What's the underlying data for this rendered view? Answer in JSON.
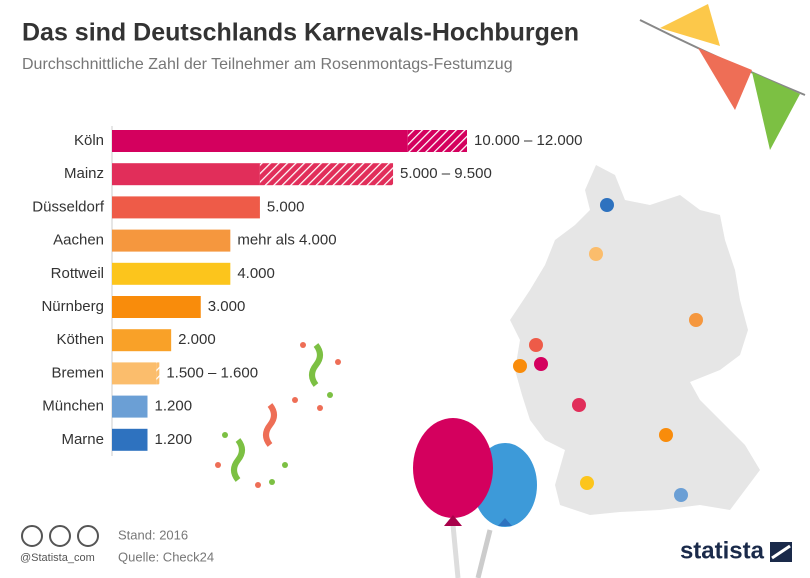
{
  "chart_data": {
    "type": "range_bar",
    "title": "Das sind Deutschlands Karnevals-Hochburgen",
    "subtitle": "Durchschnittliche Zahl der Teilnehmer am Rosenmontags-Festumzug",
    "categories": [
      "Köln",
      "Mainz",
      "Düsseldorf",
      "Aachen",
      "Rottweil",
      "Nürnberg",
      "Köthen",
      "Bremen",
      "München",
      "Marne"
    ],
    "values": [
      10000,
      5000,
      5000,
      4000,
      4000,
      3000,
      2000,
      1500,
      1200,
      1200
    ],
    "range_max": [
      12000,
      9500,
      null,
      null,
      null,
      null,
      null,
      1600,
      null,
      null
    ],
    "value_labels": [
      "10.000 – 12.000",
      "5.000 – 9.500",
      "5.000",
      "mehr als 4.000",
      "4.000",
      "3.000",
      "2.000",
      "1.500 – 1.600",
      "1.200",
      "1.200"
    ],
    "colors": [
      "#d4005e",
      "#e12e5a",
      "#ee5b48",
      "#f5973e",
      "#fcc51c",
      "#f98c0b",
      "#f9a128",
      "#fbbd6c",
      "#6b9fd5",
      "#2e72bf"
    ],
    "stand": "Stand: 2016",
    "source": "Quelle: Check24",
    "handle": "@Statista_com",
    "brand": "statista"
  }
}
